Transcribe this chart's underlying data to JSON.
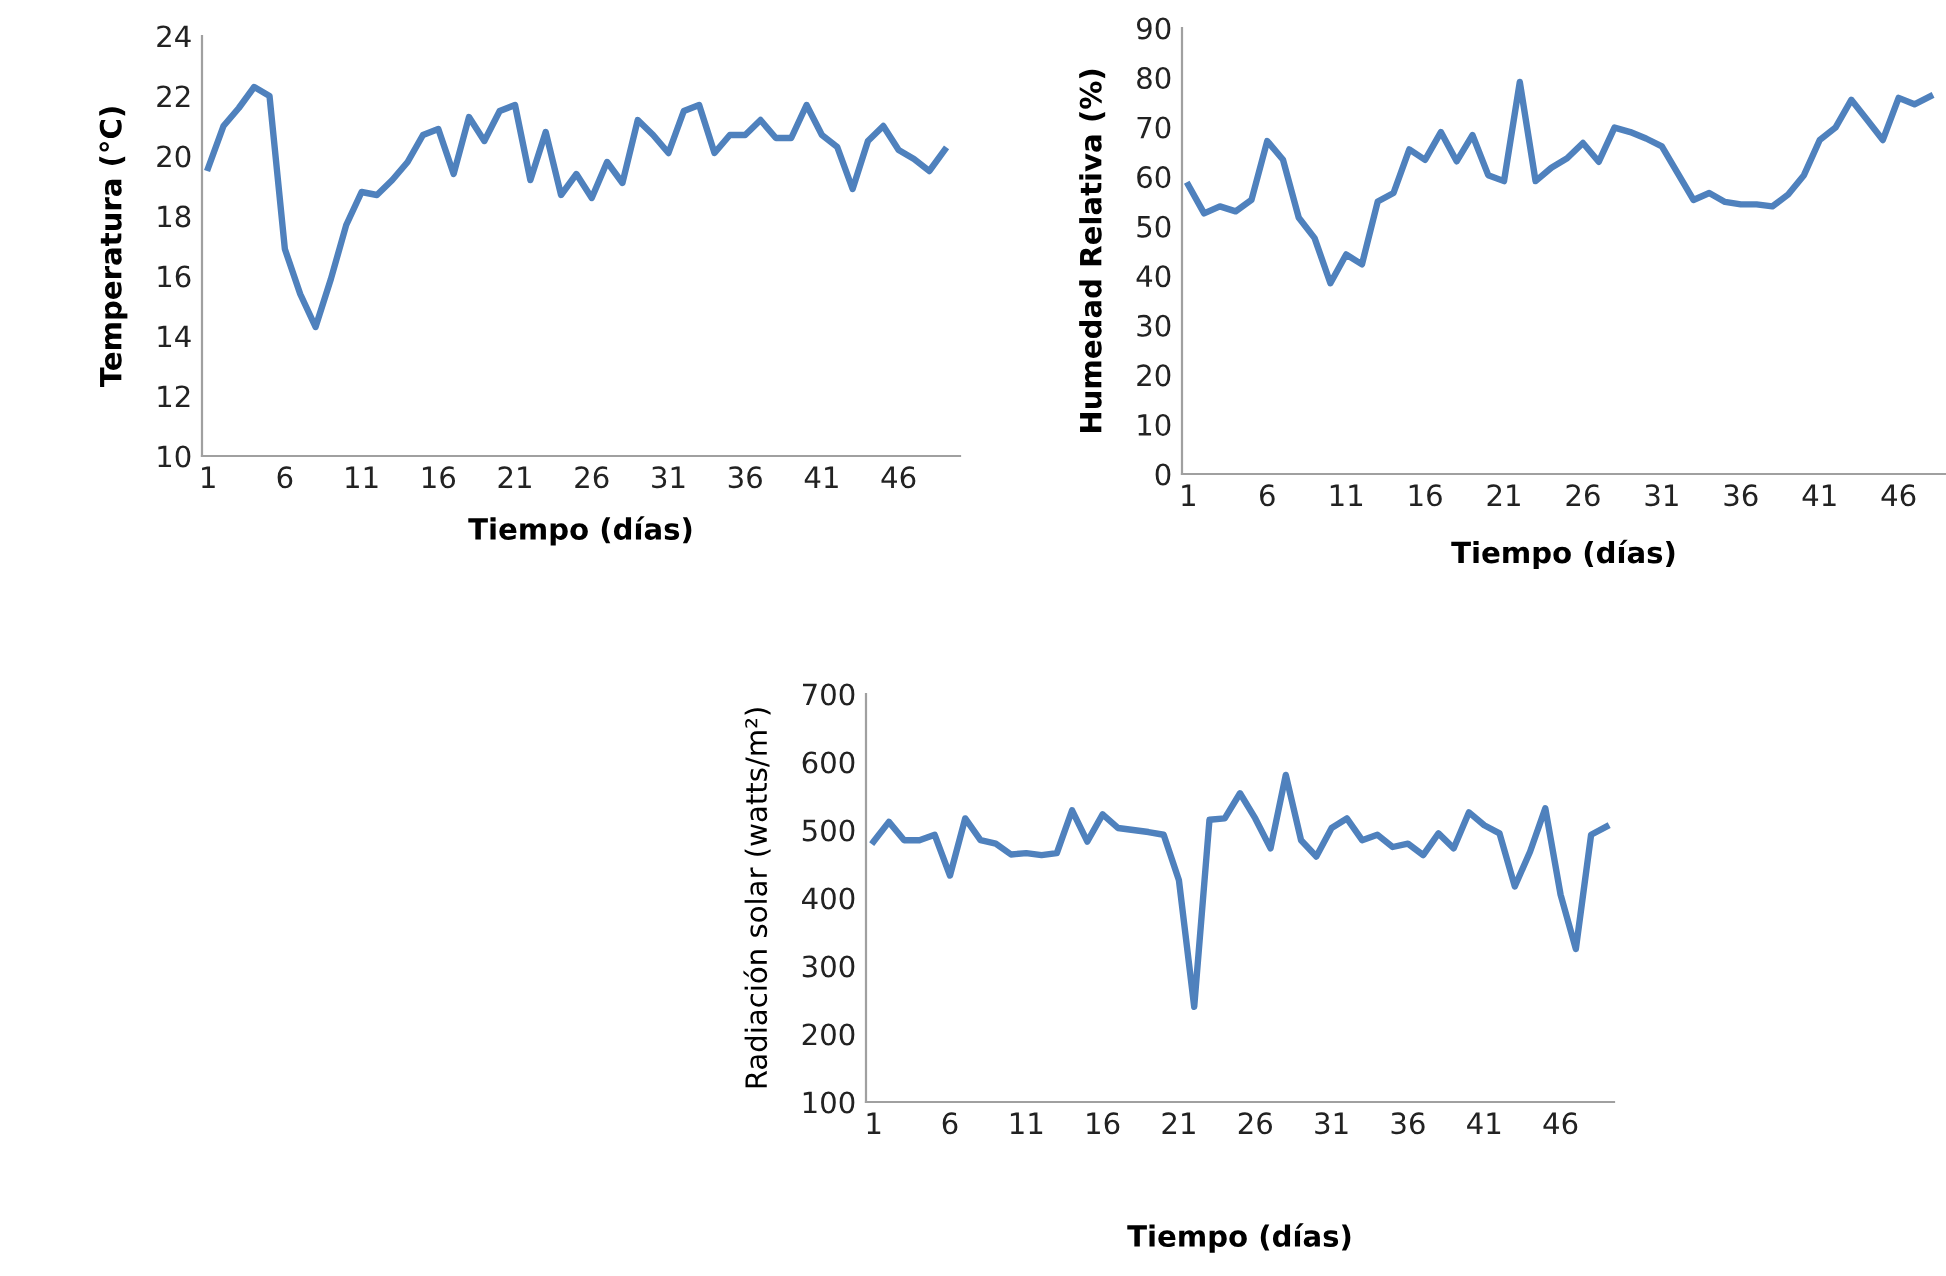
{
  "chart_data": [
    {
      "type": "line",
      "xlabel": "Tiempo (días)",
      "ylabel": "Temperatura (°C)",
      "x": [
        1,
        2,
        3,
        4,
        5,
        6,
        7,
        8,
        9,
        10,
        11,
        12,
        13,
        14,
        15,
        16,
        17,
        18,
        19,
        20,
        21,
        22,
        23,
        24,
        25,
        26,
        27,
        28,
        29,
        30,
        31,
        32,
        33,
        34,
        35,
        36,
        37,
        38,
        39,
        40,
        41,
        42,
        43,
        44,
        45,
        46,
        47,
        48,
        49
      ],
      "series": [
        {
          "color": "#4f81bd",
          "values": [
            19.6,
            21.0,
            21.6,
            22.3,
            22.0,
            16.9,
            15.4,
            14.3,
            15.9,
            17.7,
            18.8,
            18.7,
            19.2,
            19.8,
            20.7,
            20.9,
            19.4,
            21.3,
            20.5,
            21.5,
            21.7,
            19.2,
            20.8,
            18.7,
            19.4,
            18.6,
            19.8,
            19.1,
            21.2,
            20.7,
            20.1,
            21.5,
            21.7,
            20.1,
            20.7,
            20.7,
            21.2,
            20.6,
            20.6,
            21.7,
            20.7,
            20.3,
            18.9,
            20.5,
            21.0,
            20.2,
            19.9,
            19.5,
            20.2
          ]
        }
      ],
      "xlim": [
        0.6,
        50
      ],
      "xticks": [
        1,
        6,
        11,
        16,
        21,
        26,
        31,
        36,
        41,
        46
      ],
      "ylim": [
        10,
        24
      ],
      "yticks": [
        10,
        12,
        14,
        16,
        18,
        20,
        22,
        24
      ],
      "grid": false,
      "legend": false,
      "marker": "none",
      "line_style": "solid"
    },
    {
      "type": "line",
      "xlabel": "Tiempo (días)",
      "ylabel": "Humedad Relativa (%)",
      "x": [
        1,
        2,
        3,
        4,
        5,
        6,
        7,
        8,
        9,
        10,
        11,
        12,
        13,
        14,
        15,
        16,
        17,
        18,
        19,
        20,
        21,
        22,
        23,
        24,
        25,
        26,
        27,
        28,
        29,
        30,
        31,
        32,
        33,
        34,
        35,
        36,
        37,
        38,
        39,
        40,
        41,
        42,
        43,
        44,
        45,
        46,
        47,
        48
      ],
      "series": [
        {
          "color": "#4f81bd",
          "values": [
            58.3,
            52.6,
            54.0,
            53.0,
            55.3,
            67.2,
            63.4,
            51.7,
            47.6,
            38.5,
            44.3,
            42.3,
            55.0,
            56.7,
            65.5,
            63.4,
            69.0,
            63.1,
            68.4,
            60.3,
            59.1,
            79.1,
            59.1,
            61.8,
            63.7,
            66.8,
            63.0,
            69.9,
            69.0,
            67.7,
            66.1,
            60.7,
            55.3,
            56.7,
            54.9,
            54.4,
            54.4,
            54.0,
            56.4,
            60.3,
            67.4,
            69.9,
            75.5,
            71.5,
            67.4,
            75.9,
            74.6,
            76.2
          ]
        }
      ],
      "xlim": [
        0.6,
        49
      ],
      "xticks": [
        1,
        6,
        11,
        16,
        21,
        26,
        31,
        36,
        41,
        46
      ],
      "ylim": [
        0,
        90
      ],
      "yticks": [
        0,
        10,
        20,
        30,
        40,
        50,
        60,
        70,
        80,
        90
      ],
      "grid": false,
      "legend": false,
      "marker": "none",
      "line_style": "solid"
    },
    {
      "type": "line",
      "xlabel": "Tiempo (días)",
      "ylabel": "Radiación solar (watts/m²)",
      "x": [
        1,
        2,
        3,
        4,
        5,
        6,
        7,
        8,
        9,
        10,
        11,
        12,
        13,
        14,
        15,
        16,
        17,
        18,
        19,
        20,
        21,
        22,
        23,
        24,
        25,
        26,
        27,
        28,
        29,
        30,
        31,
        32,
        33,
        34,
        35,
        36,
        37,
        38,
        39,
        40,
        41,
        42,
        43,
        44,
        45,
        46,
        47,
        48,
        49
      ],
      "series": [
        {
          "color": "#4f81bd",
          "values": [
            483,
            512,
            485,
            485,
            493,
            433,
            517,
            485,
            480,
            464,
            466,
            463,
            466,
            529,
            483,
            523,
            503,
            500,
            497,
            493,
            426,
            240,
            515,
            517,
            554,
            517,
            473,
            581,
            485,
            461,
            503,
            517,
            485,
            493,
            475,
            480,
            463,
            495,
            473,
            526,
            507,
            495,
            417,
            468,
            532,
            405,
            325,
            493,
            505
          ]
        }
      ],
      "xlim": [
        0.5,
        49.5
      ],
      "xticks": [
        1,
        6,
        11,
        16,
        21,
        26,
        31,
        36,
        41,
        46
      ],
      "ylim": [
        100,
        700
      ],
      "yticks": [
        100,
        200,
        300,
        400,
        500,
        600,
        700
      ],
      "grid": false,
      "legend": false,
      "marker": "none",
      "line_style": "solid"
    }
  ]
}
